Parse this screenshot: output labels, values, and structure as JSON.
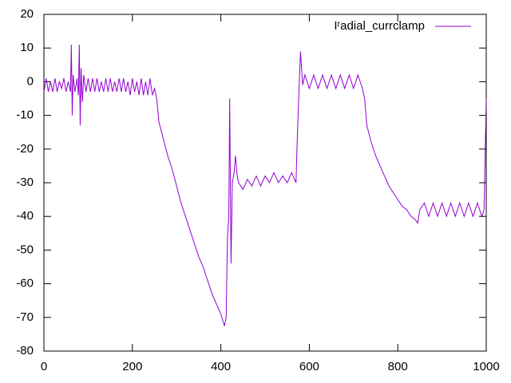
{
  "chart_data": {
    "type": "line",
    "series": [
      {
        "name": "Iʳadial_currclamp",
        "color": "#9400d3",
        "x": [
          0,
          5,
          10,
          15,
          20,
          25,
          30,
          35,
          40,
          45,
          50,
          55,
          60,
          62,
          64,
          66,
          70,
          75,
          78,
          80,
          82,
          84,
          87,
          90,
          95,
          100,
          105,
          110,
          115,
          120,
          125,
          130,
          135,
          140,
          145,
          150,
          155,
          160,
          165,
          170,
          175,
          180,
          185,
          190,
          195,
          200,
          205,
          210,
          215,
          220,
          225,
          230,
          235,
          240,
          245,
          250,
          255,
          260,
          270,
          280,
          290,
          300,
          310,
          320,
          330,
          340,
          350,
          360,
          370,
          380,
          390,
          400,
          408,
          412,
          415,
          418,
          420,
          423,
          426,
          430,
          433,
          437,
          440,
          450,
          460,
          470,
          480,
          490,
          500,
          510,
          520,
          530,
          540,
          550,
          560,
          570,
          572,
          576,
          580,
          583,
          585,
          590,
          600,
          610,
          620,
          630,
          640,
          650,
          660,
          670,
          680,
          690,
          700,
          710,
          720,
          725,
          730,
          740,
          750,
          760,
          770,
          780,
          790,
          800,
          810,
          820,
          830,
          840,
          845,
          850,
          860,
          870,
          880,
          890,
          900,
          910,
          920,
          930,
          940,
          950,
          960,
          970,
          980,
          990,
          995,
          1000
        ],
        "values": [
          -3,
          1,
          -3,
          0,
          -3,
          1,
          -3,
          0,
          -2,
          1,
          -3,
          0,
          -3,
          11,
          -10,
          2,
          -3,
          1,
          -4,
          11,
          -13,
          4,
          -6,
          2,
          -3,
          1,
          -3,
          1,
          -3,
          1,
          -3,
          0,
          -3,
          1,
          -3,
          1,
          -3,
          0,
          -3,
          1,
          -3,
          1,
          -3,
          0,
          -4,
          1,
          -3,
          0,
          -4,
          1,
          -4,
          0,
          -4,
          1,
          -4,
          -2,
          -5,
          -12,
          -17,
          -22,
          -26,
          -31,
          -36,
          -40,
          -44,
          -48,
          -52,
          -55,
          -59,
          -63,
          -66,
          -69,
          -72.5,
          -70,
          -46,
          -40,
          -5,
          -54,
          -30,
          -27,
          -22,
          -28,
          -30,
          -32,
          -29,
          -31,
          -28,
          -31,
          -28,
          -30,
          -27,
          -30,
          -28,
          -30,
          -27,
          -30,
          -20,
          -5,
          9,
          3,
          -1,
          2,
          -2,
          2,
          -2,
          2,
          -2,
          2,
          -2,
          2,
          -2,
          2,
          -2,
          2,
          -2,
          -5,
          -13,
          -18,
          -22,
          -25,
          -28,
          -31,
          -33,
          -35,
          -37,
          -38,
          -40,
          -41,
          -42,
          -38,
          -36,
          -40,
          -36,
          -40,
          -36,
          -40,
          -36,
          -40,
          -36,
          -40,
          -36,
          -40,
          -36,
          -40,
          -38,
          -5
        ]
      }
    ],
    "xlim": [
      0,
      1000
    ],
    "xticks": [
      0,
      200,
      400,
      600,
      800,
      1000
    ],
    "ylim": [
      -80,
      20
    ],
    "yticks": [
      -80,
      -70,
      -60,
      -50,
      -40,
      -30,
      -20,
      -10,
      0,
      10,
      20
    ],
    "legend": "top-right"
  }
}
